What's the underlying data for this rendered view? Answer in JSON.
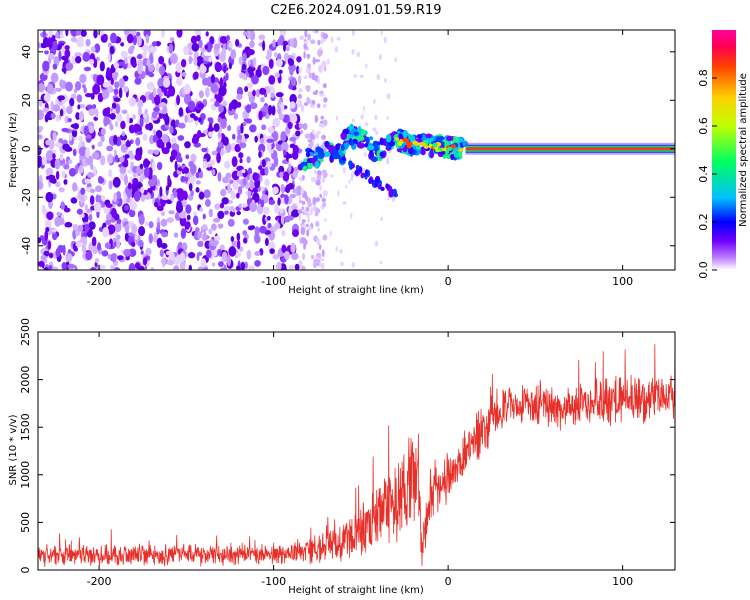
{
  "chart_data": [
    {
      "type": "heatmap",
      "title": "C2E6.2024.091.01.59.R19",
      "xlabel": "Height of straight line (km)",
      "ylabel": "Frequency (Hz)",
      "xlim": [
        -235,
        130
      ],
      "ylim": [
        -50,
        49
      ],
      "xticks": [
        -200,
        -100,
        0,
        100
      ],
      "yticks": [
        -40,
        -20,
        0,
        20,
        40
      ],
      "xtick_labels": [
        "-200",
        "-100",
        "0",
        "100"
      ],
      "ytick_labels": [
        "-40",
        "-20",
        "0",
        "20",
        "40"
      ],
      "colorbar": {
        "label": "Normalized spectral amplitude",
        "range": [
          0,
          1
        ],
        "ticks": [
          0.0,
          0.2,
          0.4,
          0.6,
          0.8
        ],
        "tick_labels": [
          "0.0",
          "0.2",
          "0.4",
          "0.6",
          "0.8"
        ],
        "colors": [
          "#ffffff",
          "#c080ff",
          "#7000ff",
          "#0000ff",
          "#00c0ff",
          "#00ff60",
          "#c0ff00",
          "#ffd000",
          "#ff4000",
          "#ff0050",
          "#ff00a0"
        ]
      },
      "regions": [
        {
          "name": "noise",
          "x_range": [
            -235,
            -85
          ],
          "freq_range": [
            -50,
            49
          ],
          "amplitude": "low-medium"
        },
        {
          "name": "fading-noise",
          "x_range": [
            -85,
            -70
          ],
          "freq_range": [
            -50,
            49
          ],
          "amplitude": "low"
        },
        {
          "name": "sparse",
          "x_range": [
            -70,
            -30
          ],
          "freq_range": [
            -50,
            49
          ],
          "amplitude": "very low"
        },
        {
          "name": "signal-onset",
          "x_range": [
            -85,
            10
          ],
          "freq_range": [
            -12,
            8
          ],
          "amplitude": "medium-high"
        },
        {
          "name": "carrier-line",
          "x_range": [
            10,
            130
          ],
          "freq": 0,
          "amplitude": "high"
        }
      ]
    },
    {
      "type": "line",
      "title": "",
      "xlabel": "Height of straight line (km)",
      "ylabel": "SNR (10 * v/v)",
      "xlim": [
        -235,
        130
      ],
      "ylim": [
        0,
        2500
      ],
      "xticks": [
        -200,
        -100,
        0,
        100
      ],
      "yticks": [
        0,
        500,
        1000,
        1500,
        2000,
        2500
      ],
      "xtick_labels": [
        "-200",
        "-100",
        "0",
        "100"
      ],
      "ytick_labels": [
        "0",
        "500",
        "1000",
        "1500",
        "2000",
        "2500"
      ],
      "series": [
        {
          "name": "SNR",
          "color": "#e8302a",
          "trend_x": [
            -235,
            -200,
            -150,
            -100,
            -80,
            -60,
            -45,
            -35,
            -25,
            -20,
            -17,
            -15,
            -10,
            -5,
            0,
            10,
            20,
            30,
            40,
            60,
            80,
            100,
            120,
            130
          ],
          "trend_y": [
            150,
            160,
            160,
            170,
            200,
            320,
            480,
            620,
            800,
            1000,
            950,
            200,
            700,
            900,
            950,
            1250,
            1450,
            1700,
            1750,
            1700,
            1750,
            1800,
            1800,
            1850
          ],
          "noise_amp": [
            130,
            130,
            130,
            130,
            160,
            250,
            350,
            450,
            550,
            550,
            550,
            300,
            320,
            280,
            300,
            300,
            300,
            280,
            250,
            250,
            280,
            330,
            280,
            280
          ]
        }
      ]
    }
  ]
}
